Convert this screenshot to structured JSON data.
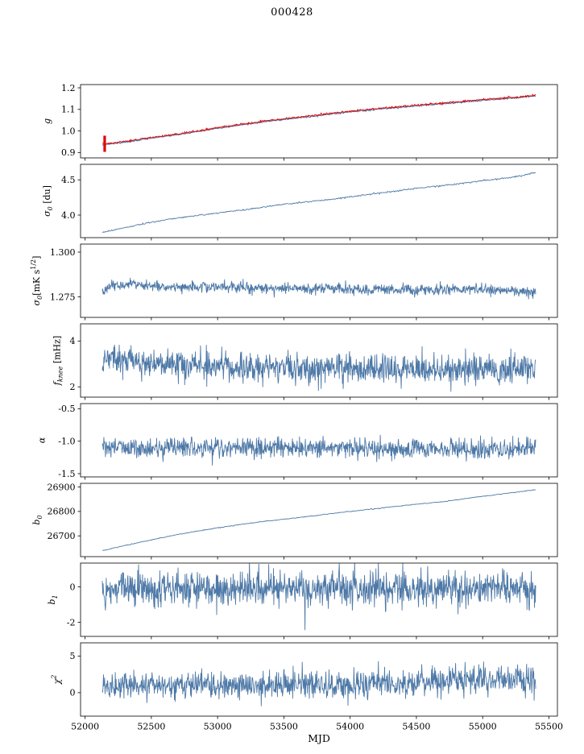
{
  "chart_data": {
    "type": "line",
    "title": "000428",
    "xlabel": "MJD",
    "xlim": [
      51966,
      55564
    ],
    "x_ticks": [
      52000,
      52500,
      53000,
      53500,
      54000,
      54500,
      55000,
      55500
    ],
    "x_data_range": [
      52130,
      55400
    ],
    "grid": false,
    "legend": "none",
    "colors": {
      "blue": "#4e79a7",
      "red": "#e00000"
    },
    "subplots": [
      {
        "id": "g",
        "ylabel": "g",
        "ylim": [
          0.875,
          1.215
        ],
        "yticks": [
          {
            "v": 0.9,
            "label": "0.9"
          },
          {
            "v": 1.0,
            "label": "1.0"
          },
          {
            "v": 1.1,
            "label": "1.1"
          },
          {
            "v": 1.2,
            "label": "1.2"
          }
        ],
        "series": [
          {
            "name": "g-blue",
            "color": "blue",
            "width": 1.1,
            "points": 700,
            "seed": 11,
            "sigma": 0.0015,
            "trend": [
              [
                52130,
                0.937
              ],
              [
                52200,
                0.94
              ],
              [
                52350,
                0.952
              ],
              [
                52500,
                0.967
              ],
              [
                52650,
                0.979
              ],
              [
                52800,
                0.992
              ],
              [
                53000,
                1.012
              ],
              [
                53200,
                1.03
              ],
              [
                53400,
                1.046
              ],
              [
                53600,
                1.06
              ],
              [
                53800,
                1.074
              ],
              [
                54000,
                1.088
              ],
              [
                54200,
                1.1
              ],
              [
                54400,
                1.111
              ],
              [
                54600,
                1.121
              ],
              [
                54800,
                1.131
              ],
              [
                55000,
                1.142
              ],
              [
                55150,
                1.149
              ],
              [
                55250,
                1.152
              ],
              [
                55350,
                1.16
              ],
              [
                55400,
                1.162
              ]
            ]
          },
          {
            "name": "g-red",
            "color": "red",
            "width": 0.9,
            "points": 700,
            "seed": 12,
            "sigma": 0.0022,
            "trend_ref": 0,
            "offset": 0.0035,
            "vspikes": [
              {
                "x": 52148,
                "y0": 0.903,
                "y1": 0.978
              }
            ]
          }
        ]
      },
      {
        "id": "sigma0-du",
        "ylabel": "σ_{0} [du]",
        "ylim": [
          3.68,
          4.72
        ],
        "yticks": [
          {
            "v": 4.0,
            "label": "4.0"
          },
          {
            "v": 4.5,
            "label": "4.5"
          }
        ],
        "series": [
          {
            "name": "sigma0-du",
            "color": "blue",
            "width": 0.9,
            "points": 600,
            "seed": 21,
            "sigma": 0.005,
            "trend": [
              [
                52130,
                3.755
              ],
              [
                52300,
                3.82
              ],
              [
                52500,
                3.9
              ],
              [
                52700,
                3.96
              ],
              [
                53000,
                4.03
              ],
              [
                53300,
                4.1
              ],
              [
                53500,
                4.155
              ],
              [
                53800,
                4.21
              ],
              [
                54000,
                4.26
              ],
              [
                54300,
                4.33
              ],
              [
                54500,
                4.38
              ],
              [
                54800,
                4.44
              ],
              [
                55000,
                4.49
              ],
              [
                55200,
                4.53
              ],
              [
                55300,
                4.56
              ],
              [
                55400,
                4.605
              ]
            ]
          }
        ]
      },
      {
        "id": "sigma0-mks",
        "ylabel": "σ_{0}[mK s^{1/2}]",
        "ylim": [
          1.2635,
          1.3045
        ],
        "yticks": [
          {
            "v": 1.275,
            "label": "1.275"
          },
          {
            "v": 1.3,
            "label": "1.300"
          }
        ],
        "series": [
          {
            "name": "sigma0-mks",
            "color": "blue",
            "width": 0.9,
            "points": 1100,
            "seed": 31,
            "sigma": 0.0015,
            "trend": [
              [
                52130,
                1.277
              ],
              [
                52200,
                1.2815
              ],
              [
                52350,
                1.2825
              ],
              [
                52600,
                1.2805
              ],
              [
                53000,
                1.2808
              ],
              [
                53400,
                1.28
              ],
              [
                54000,
                1.2793
              ],
              [
                54700,
                1.2787
              ],
              [
                55000,
                1.279
              ],
              [
                55300,
                1.278
              ],
              [
                55400,
                1.2772
              ]
            ]
          }
        ]
      },
      {
        "id": "fknee",
        "ylabel": "f_{knee} [mHz]",
        "ylim": [
          1.55,
          4.75
        ],
        "yticks": [
          {
            "v": 2,
            "label": "2"
          },
          {
            "v": 4,
            "label": "4"
          }
        ],
        "series": [
          {
            "name": "fknee",
            "color": "blue",
            "width": 0.9,
            "points": 1100,
            "seed": 41,
            "sigma": 0.32,
            "trend": [
              [
                52130,
                3.35
              ],
              [
                52300,
                3.15
              ],
              [
                52600,
                3.0
              ],
              [
                53000,
                2.92
              ],
              [
                53500,
                2.86
              ],
              [
                54000,
                2.8
              ],
              [
                54500,
                2.75
              ],
              [
                55000,
                2.72
              ],
              [
                55300,
                2.76
              ],
              [
                55400,
                2.8
              ]
            ]
          }
        ]
      },
      {
        "id": "alpha",
        "ylabel": "α",
        "ylim": [
          -1.55,
          -0.42
        ],
        "yticks": [
          {
            "v": -1.5,
            "label": "-1.5"
          },
          {
            "v": -1.0,
            "label": "-1.0"
          },
          {
            "v": -0.5,
            "label": "-0.5"
          }
        ],
        "series": [
          {
            "name": "alpha",
            "color": "blue",
            "width": 0.9,
            "points": 1100,
            "seed": 51,
            "sigma": 0.075,
            "trend": [
              [
                52130,
                -1.1
              ],
              [
                53500,
                -1.11
              ],
              [
                55400,
                -1.12
              ]
            ]
          }
        ]
      },
      {
        "id": "b0",
        "ylabel": "b_{0}",
        "ylim": [
          26615,
          26915
        ],
        "yticks": [
          {
            "v": 26700,
            "label": "26700"
          },
          {
            "v": 26800,
            "label": "26800"
          },
          {
            "v": 26900,
            "label": "26900"
          }
        ],
        "series": [
          {
            "name": "b0",
            "color": "blue",
            "width": 0.9,
            "points": 500,
            "seed": 61,
            "sigma": 0.8,
            "trend": [
              [
                52130,
                26640
              ],
              [
                52400,
                26672
              ],
              [
                52700,
                26706
              ],
              [
                53000,
                26733
              ],
              [
                53300,
                26756
              ],
              [
                53600,
                26774
              ],
              [
                54000,
                26800
              ],
              [
                54400,
                26824
              ],
              [
                54700,
                26840
              ],
              [
                55000,
                26862
              ],
              [
                55200,
                26875
              ],
              [
                55400,
                26889
              ]
            ]
          }
        ]
      },
      {
        "id": "b1",
        "ylabel": "b_{1}",
        "ylim": [
          -2.8,
          1.35
        ],
        "yticks": [
          {
            "v": -2,
            "label": "-2"
          },
          {
            "v": 0,
            "label": "0"
          }
        ],
        "series": [
          {
            "name": "b1",
            "color": "blue",
            "width": 0.9,
            "points": 1100,
            "seed": 71,
            "sigma": 0.5,
            "trend": [
              [
                52130,
                -0.12
              ],
              [
                54000,
                -0.08
              ],
              [
                55400,
                -0.05
              ]
            ],
            "spikes": [
              {
                "x": 53660,
                "y": -2.45
              }
            ]
          }
        ]
      },
      {
        "id": "chi2",
        "ylabel": "χ^{2}",
        "ylim": [
          -3.2,
          6.8
        ],
        "yticks": [
          {
            "v": 0,
            "label": "0"
          },
          {
            "v": 5,
            "label": "5"
          }
        ],
        "series": [
          {
            "name": "chi2",
            "color": "blue",
            "width": 0.9,
            "points": 1100,
            "seed": 81,
            "sigma": 0.95,
            "trend": [
              [
                52130,
                0.9
              ],
              [
                53000,
                1.0
              ],
              [
                54000,
                1.1
              ],
              [
                54500,
                1.4
              ],
              [
                54800,
                1.6
              ],
              [
                55100,
                1.7
              ],
              [
                55400,
                1.9
              ]
            ]
          }
        ]
      }
    ]
  }
}
